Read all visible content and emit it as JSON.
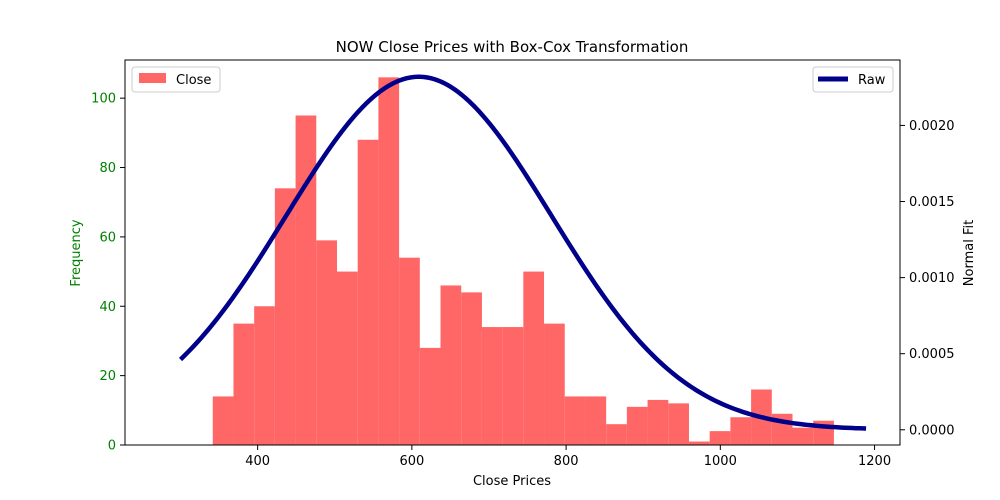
{
  "chart_data": {
    "type": "bar",
    "title": "NOW Close Prices with Box-Cox Transformation",
    "xlabel": "Close Prices",
    "ylabel": "Frequency",
    "y2label": "Normal Fit",
    "xlim": [
      228,
      1233
    ],
    "ylim": [
      0,
      111
    ],
    "y2lim": [
      -0.0001,
      0.00243
    ],
    "xticks": [
      400,
      600,
      800,
      1000,
      1200
    ],
    "yticks": [
      0,
      20,
      40,
      60,
      80,
      100
    ],
    "y2ticks": [
      0.0,
      0.0005,
      0.001,
      0.0015,
      0.002
    ],
    "y2tick_labels": [
      "0.0000",
      "0.0005",
      "0.0010",
      "0.0015",
      "0.0020"
    ],
    "bin_width": 26.85,
    "bins": [
      {
        "x0": 341.8,
        "count": 14
      },
      {
        "x0": 368.65,
        "count": 35
      },
      {
        "x0": 395.5,
        "count": 40
      },
      {
        "x0": 422.35,
        "count": 74
      },
      {
        "x0": 449.2,
        "count": 95
      },
      {
        "x0": 476.05,
        "count": 59
      },
      {
        "x0": 502.9,
        "count": 50
      },
      {
        "x0": 529.75,
        "count": 88
      },
      {
        "x0": 556.6,
        "count": 106
      },
      {
        "x0": 583.45,
        "count": 54
      },
      {
        "x0": 610.3,
        "count": 28
      },
      {
        "x0": 637.15,
        "count": 46
      },
      {
        "x0": 664.0,
        "count": 44
      },
      {
        "x0": 690.85,
        "count": 34
      },
      {
        "x0": 717.7,
        "count": 34
      },
      {
        "x0": 744.55,
        "count": 50
      },
      {
        "x0": 771.4,
        "count": 35
      },
      {
        "x0": 798.25,
        "count": 14
      },
      {
        "x0": 825.1,
        "count": 14
      },
      {
        "x0": 851.95,
        "count": 6
      },
      {
        "x0": 878.8,
        "count": 11
      },
      {
        "x0": 905.65,
        "count": 13
      },
      {
        "x0": 932.5,
        "count": 12
      },
      {
        "x0": 959.35,
        "count": 1
      },
      {
        "x0": 986.2,
        "count": 4
      },
      {
        "x0": 1013.05,
        "count": 8
      },
      {
        "x0": 1039.9,
        "count": 16
      },
      {
        "x0": 1066.75,
        "count": 9
      },
      {
        "x0": 1093.6,
        "count": 5
      },
      {
        "x0": 1120.45,
        "count": 7
      }
    ],
    "fit": {
      "mean": 609,
      "std": 172,
      "x_range": [
        300,
        1189
      ],
      "baseline": 3e-07
    },
    "legend_left": {
      "label": "Close",
      "placement": "upper-left"
    },
    "legend_right": {
      "label": "Raw",
      "placement": "upper-right"
    },
    "colors": {
      "bars": "#ff6666",
      "curve": "#00008b",
      "left_axis": "#008000",
      "text": "#000000"
    },
    "grid": false
  }
}
